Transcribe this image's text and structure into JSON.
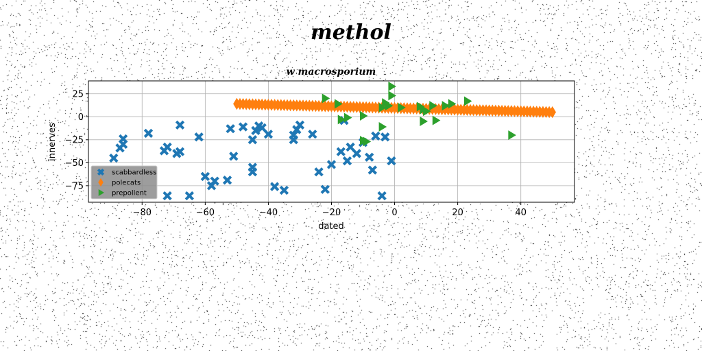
{
  "chart_data": {
    "type": "scatter",
    "suptitle": "methol",
    "title": "w macrosporium",
    "xlabel": "dated",
    "ylabel": "innerves",
    "xlim": [
      -97,
      57
    ],
    "ylim": [
      -93,
      39
    ],
    "xticks": [
      -80,
      -60,
      -40,
      -20,
      0,
      20,
      40
    ],
    "yticks": [
      25,
      0,
      -25,
      -50,
      -75
    ],
    "grid": true,
    "legend_position": "lower-left",
    "series": [
      {
        "name": "scabbardless",
        "color": "#1f77b4",
        "marker": "x",
        "points": [
          [
            -89,
            -45
          ],
          [
            -87,
            -34
          ],
          [
            -86,
            -30
          ],
          [
            -86,
            -24
          ],
          [
            -78,
            -18
          ],
          [
            -73,
            -37
          ],
          [
            -72,
            -33
          ],
          [
            -72,
            -86
          ],
          [
            -69,
            -40
          ],
          [
            -68,
            -38
          ],
          [
            -68,
            -9
          ],
          [
            -62,
            -22
          ],
          [
            -60,
            -65
          ],
          [
            -58,
            -75
          ],
          [
            -57,
            -70
          ],
          [
            -53,
            -69
          ],
          [
            -52,
            -13
          ],
          [
            -51,
            -43
          ],
          [
            -48,
            -11
          ],
          [
            -45,
            -25
          ],
          [
            -45,
            -55
          ],
          [
            -45,
            -60
          ],
          [
            -44,
            -15
          ],
          [
            -43,
            -10
          ],
          [
            -42,
            -12
          ],
          [
            -40,
            -19
          ],
          [
            -38,
            -76
          ],
          [
            -35,
            -80
          ],
          [
            -32,
            -20
          ],
          [
            -32,
            -25
          ],
          [
            -31,
            -14
          ],
          [
            -30,
            -9
          ],
          [
            -26,
            -19
          ],
          [
            -24,
            -60
          ],
          [
            -22,
            -79
          ],
          [
            -20,
            -52
          ],
          [
            -17,
            -38
          ],
          [
            -15,
            -48
          ],
          [
            -14,
            -33
          ],
          [
            -12,
            -40
          ],
          [
            -10,
            -28
          ],
          [
            -8,
            -44
          ],
          [
            -7,
            -58
          ],
          [
            -6,
            -21
          ],
          [
            -4,
            -86
          ],
          [
            -3,
            -22
          ],
          [
            -1,
            -48
          ],
          [
            -16,
            -4
          ],
          [
            -65,
            -86
          ]
        ]
      },
      {
        "name": "polecats",
        "color": "#ff7f0e",
        "marker": "D",
        "line": {
          "x_start": -50,
          "x_end": 50,
          "y_start": 14,
          "y_end": 5,
          "count": 101
        }
      },
      {
        "name": "prepollent",
        "color": "#2ca02c",
        "marker": ">",
        "points": [
          [
            -1,
            33
          ],
          [
            -1,
            23
          ],
          [
            -3,
            15
          ],
          [
            -2,
            12
          ],
          [
            -4,
            10
          ],
          [
            -22,
            20
          ],
          [
            -18,
            14
          ],
          [
            -17,
            -3
          ],
          [
            -15,
            -1
          ],
          [
            -10,
            1
          ],
          [
            -10,
            -26
          ],
          [
            -4,
            -11
          ],
          [
            -9,
            -27
          ],
          [
            8,
            11
          ],
          [
            9,
            8
          ],
          [
            10,
            6
          ],
          [
            13,
            -4
          ],
          [
            12,
            12
          ],
          [
            9,
            -5
          ],
          [
            16,
            12
          ],
          [
            18,
            14
          ],
          [
            23,
            17
          ],
          [
            37,
            -20
          ],
          [
            2,
            10
          ]
        ]
      }
    ]
  }
}
